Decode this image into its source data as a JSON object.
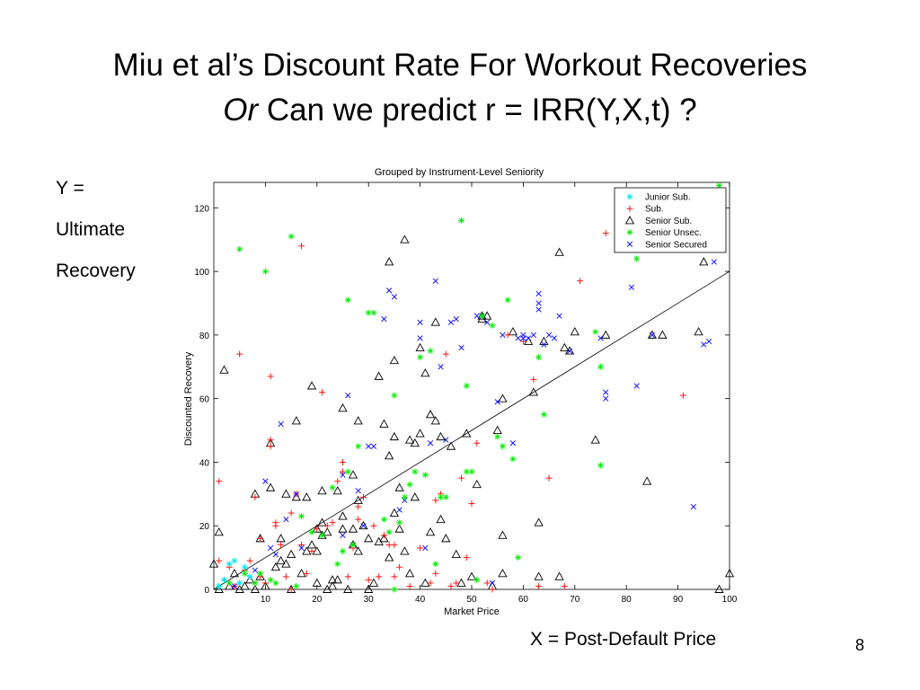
{
  "slide": {
    "title_line1": "Miu et al’s Discount Rate For Workout Recoveries",
    "title_line2_italic": "Or",
    "title_line2_rest": " Can we predict r = IRR(Y,X,t) ?",
    "y_label_lines": [
      "Y =",
      "Ultimate",
      "Recovery"
    ],
    "x_caption": "X = Post-Default Price",
    "page_number": "8"
  },
  "colors": {
    "junior_sub": "#00e5ee",
    "sub": "#ff0000",
    "senior_sub": "#000000",
    "senior_unsec": "#00ee00",
    "senior_secured": "#0000ff"
  },
  "chart_data": {
    "type": "scatter",
    "title": "Grouped by Instrument-Level Seniority",
    "xlabel": "Market Price",
    "ylabel": "Discounted Recovery",
    "xlim": [
      0,
      100
    ],
    "ylim": [
      0,
      128
    ],
    "xticks": [
      "10",
      "20",
      "30",
      "40",
      "50",
      "60",
      "70",
      "80",
      "90",
      "100"
    ],
    "yticks": [
      "0",
      "20",
      "40",
      "60",
      "80",
      "100",
      "120"
    ],
    "xtick_values": [
      10,
      20,
      30,
      40,
      50,
      60,
      70,
      80,
      90,
      100
    ],
    "ytick_values": [
      0,
      20,
      40,
      60,
      80,
      100,
      120
    ],
    "grid": false,
    "legend_position": "top-right",
    "reference_line": {
      "from": [
        0,
        0
      ],
      "to": [
        100,
        100
      ]
    },
    "series": [
      {
        "name": "Junior Sub.",
        "marker": "asterisk",
        "color": "#00e5ee",
        "points": [
          [
            1,
            1
          ],
          [
            2,
            3
          ],
          [
            3,
            8
          ],
          [
            4,
            9
          ],
          [
            5,
            2
          ],
          [
            6,
            7
          ],
          [
            7,
            4
          ]
        ]
      },
      {
        "name": "Sub.",
        "marker": "plus",
        "color": "#ff0000",
        "points": [
          [
            1,
            34
          ],
          [
            1,
            9
          ],
          [
            2,
            3
          ],
          [
            3,
            7
          ],
          [
            4,
            1
          ],
          [
            5,
            74
          ],
          [
            6,
            6
          ],
          [
            7,
            9
          ],
          [
            8,
            29
          ],
          [
            9,
            4
          ],
          [
            9,
            16
          ],
          [
            10,
            2
          ],
          [
            11,
            45
          ],
          [
            11,
            47
          ],
          [
            11,
            67
          ],
          [
            12,
            20
          ],
          [
            12,
            21
          ],
          [
            13,
            14
          ],
          [
            14,
            4
          ],
          [
            15,
            0
          ],
          [
            15,
            24
          ],
          [
            16,
            30
          ],
          [
            17,
            108
          ],
          [
            17,
            14
          ],
          [
            18,
            5
          ],
          [
            19,
            12
          ],
          [
            20,
            19
          ],
          [
            21,
            62
          ],
          [
            22,
            20
          ],
          [
            23,
            21
          ],
          [
            24,
            34
          ],
          [
            25,
            37
          ],
          [
            25,
            40
          ],
          [
            26,
            4
          ],
          [
            27,
            13
          ],
          [
            28,
            22
          ],
          [
            28,
            26
          ],
          [
            29,
            29
          ],
          [
            30,
            3
          ],
          [
            31,
            20
          ],
          [
            32,
            4
          ],
          [
            33,
            17
          ],
          [
            34,
            14
          ],
          [
            35,
            14
          ],
          [
            35,
            4
          ],
          [
            36,
            7
          ],
          [
            38,
            1
          ],
          [
            40,
            13
          ],
          [
            42,
            2
          ],
          [
            43,
            28
          ],
          [
            43,
            5
          ],
          [
            44,
            30
          ],
          [
            45,
            74
          ],
          [
            46,
            1
          ],
          [
            47,
            2
          ],
          [
            48,
            35
          ],
          [
            49,
            10
          ],
          [
            50,
            27
          ],
          [
            51,
            46
          ],
          [
            53,
            2
          ],
          [
            54,
            0
          ],
          [
            57,
            80
          ],
          [
            60,
            78
          ],
          [
            62,
            66
          ],
          [
            63,
            1
          ],
          [
            65,
            35
          ],
          [
            68,
            1
          ],
          [
            71,
            97
          ],
          [
            76,
            112
          ],
          [
            91,
            61
          ]
        ]
      },
      {
        "name": "Senior Sub.",
        "marker": "triangle",
        "color": "#000000",
        "points": [
          [
            0,
            8
          ],
          [
            1,
            18
          ],
          [
            1,
            0
          ],
          [
            2,
            69
          ],
          [
            3,
            1
          ],
          [
            4,
            5
          ],
          [
            5,
            0
          ],
          [
            6,
            1
          ],
          [
            7,
            3
          ],
          [
            8,
            0
          ],
          [
            8,
            30
          ],
          [
            9,
            4
          ],
          [
            9,
            16
          ],
          [
            10,
            1
          ],
          [
            11,
            46
          ],
          [
            11,
            32
          ],
          [
            12,
            7
          ],
          [
            13,
            16
          ],
          [
            13,
            9
          ],
          [
            14,
            8
          ],
          [
            14,
            30
          ],
          [
            15,
            0
          ],
          [
            15,
            11
          ],
          [
            16,
            29
          ],
          [
            16,
            53
          ],
          [
            17,
            5
          ],
          [
            18,
            29
          ],
          [
            18,
            12
          ],
          [
            19,
            64
          ],
          [
            19,
            14
          ],
          [
            20,
            12
          ],
          [
            20,
            19
          ],
          [
            20,
            2
          ],
          [
            21,
            31
          ],
          [
            21,
            17
          ],
          [
            21,
            21
          ],
          [
            22,
            18
          ],
          [
            22,
            0
          ],
          [
            23,
            3
          ],
          [
            23,
            1
          ],
          [
            24,
            31
          ],
          [
            24,
            3
          ],
          [
            25,
            57
          ],
          [
            25,
            19
          ],
          [
            25,
            23
          ],
          [
            26,
            0
          ],
          [
            27,
            19
          ],
          [
            27,
            14
          ],
          [
            27,
            36
          ],
          [
            28,
            53
          ],
          [
            28,
            28
          ],
          [
            28,
            12
          ],
          [
            29,
            20
          ],
          [
            30,
            16
          ],
          [
            30,
            0
          ],
          [
            31,
            2
          ],
          [
            32,
            67
          ],
          [
            32,
            15
          ],
          [
            33,
            52
          ],
          [
            33,
            16
          ],
          [
            34,
            103
          ],
          [
            34,
            10
          ],
          [
            34,
            42
          ],
          [
            35,
            48
          ],
          [
            35,
            24
          ],
          [
            35,
            72
          ],
          [
            36,
            32
          ],
          [
            36,
            19
          ],
          [
            37,
            110
          ],
          [
            37,
            12
          ],
          [
            38,
            5
          ],
          [
            38,
            47
          ],
          [
            39,
            29
          ],
          [
            39,
            46
          ],
          [
            40,
            76
          ],
          [
            40,
            49
          ],
          [
            41,
            68
          ],
          [
            41,
            2
          ],
          [
            42,
            55
          ],
          [
            42,
            18
          ],
          [
            43,
            84
          ],
          [
            43,
            53
          ],
          [
            44,
            22
          ],
          [
            44,
            48
          ],
          [
            45,
            16
          ],
          [
            46,
            45
          ],
          [
            47,
            11
          ],
          [
            48,
            2
          ],
          [
            49,
            49
          ],
          [
            50,
            4
          ],
          [
            51,
            33
          ],
          [
            52,
            85
          ],
          [
            52,
            86
          ],
          [
            53,
            86
          ],
          [
            54,
            1
          ],
          [
            55,
            50
          ],
          [
            56,
            60
          ],
          [
            56,
            5
          ],
          [
            56,
            17
          ],
          [
            58,
            81
          ],
          [
            61,
            78
          ],
          [
            62,
            62
          ],
          [
            63,
            4
          ],
          [
            63,
            21
          ],
          [
            64,
            78
          ],
          [
            67,
            4
          ],
          [
            67,
            106
          ],
          [
            68,
            76
          ],
          [
            69,
            75
          ],
          [
            70,
            81
          ],
          [
            74,
            47
          ],
          [
            76,
            80
          ],
          [
            84,
            34
          ],
          [
            85,
            80
          ],
          [
            87,
            80
          ],
          [
            94,
            81
          ],
          [
            95,
            103
          ],
          [
            98,
            0
          ],
          [
            100,
            5
          ]
        ]
      },
      {
        "name": "Senior Unsec.",
        "marker": "asterisk",
        "color": "#00ee00",
        "points": [
          [
            1,
            1
          ],
          [
            3,
            2
          ],
          [
            5,
            107
          ],
          [
            6,
            5
          ],
          [
            8,
            2
          ],
          [
            9,
            5
          ],
          [
            10,
            100
          ],
          [
            11,
            3
          ],
          [
            12,
            2
          ],
          [
            15,
            111
          ],
          [
            16,
            1
          ],
          [
            17,
            23
          ],
          [
            19,
            18
          ],
          [
            21,
            17
          ],
          [
            23,
            32
          ],
          [
            24,
            8
          ],
          [
            25,
            12
          ],
          [
            26,
            37
          ],
          [
            26,
            91
          ],
          [
            27,
            14
          ],
          [
            28,
            45
          ],
          [
            30,
            87
          ],
          [
            31,
            87
          ],
          [
            33,
            22
          ],
          [
            34,
            18
          ],
          [
            35,
            0
          ],
          [
            35,
            61
          ],
          [
            36,
            21
          ],
          [
            37,
            29
          ],
          [
            38,
            33
          ],
          [
            39,
            37
          ],
          [
            40,
            73
          ],
          [
            41,
            36
          ],
          [
            42,
            75
          ],
          [
            43,
            8
          ],
          [
            44,
            29
          ],
          [
            45,
            29
          ],
          [
            48,
            116
          ],
          [
            49,
            37
          ],
          [
            49,
            64
          ],
          [
            50,
            37
          ],
          [
            51,
            3
          ],
          [
            52,
            86
          ],
          [
            54,
            83
          ],
          [
            55,
            48
          ],
          [
            56,
            45
          ],
          [
            57,
            91
          ],
          [
            58,
            41
          ],
          [
            59,
            10
          ],
          [
            63,
            73
          ],
          [
            64,
            55
          ],
          [
            74,
            81
          ],
          [
            75,
            39
          ],
          [
            75,
            70
          ],
          [
            82,
            104
          ],
          [
            98,
            127
          ]
        ]
      },
      {
        "name": "Senior Secured",
        "marker": "x",
        "color": "#0000ff",
        "points": [
          [
            4,
            1
          ],
          [
            8,
            6
          ],
          [
            10,
            34
          ],
          [
            11,
            13
          ],
          [
            12,
            11
          ],
          [
            13,
            52
          ],
          [
            14,
            22
          ],
          [
            16,
            30
          ],
          [
            17,
            13
          ],
          [
            25,
            17
          ],
          [
            25,
            36
          ],
          [
            26,
            61
          ],
          [
            27,
            14
          ],
          [
            28,
            31
          ],
          [
            29,
            20
          ],
          [
            30,
            45
          ],
          [
            31,
            45
          ],
          [
            33,
            85
          ],
          [
            34,
            94
          ],
          [
            35,
            92
          ],
          [
            36,
            25
          ],
          [
            37,
            28
          ],
          [
            40,
            84
          ],
          [
            40,
            79
          ],
          [
            41,
            13
          ],
          [
            42,
            46
          ],
          [
            43,
            97
          ],
          [
            44,
            70
          ],
          [
            45,
            47
          ],
          [
            46,
            84
          ],
          [
            47,
            85
          ],
          [
            48,
            76
          ],
          [
            51,
            86
          ],
          [
            52,
            86
          ],
          [
            53,
            84
          ],
          [
            54,
            2
          ],
          [
            55,
            59
          ],
          [
            56,
            80
          ],
          [
            58,
            46
          ],
          [
            59,
            79
          ],
          [
            60,
            79
          ],
          [
            60,
            80
          ],
          [
            61,
            79
          ],
          [
            62,
            80
          ],
          [
            63,
            88
          ],
          [
            63,
            90
          ],
          [
            63,
            93
          ],
          [
            64,
            77
          ],
          [
            65,
            80
          ],
          [
            66,
            79
          ],
          [
            67,
            86
          ],
          [
            69,
            75
          ],
          [
            75,
            79
          ],
          [
            76,
            60
          ],
          [
            76,
            62
          ],
          [
            81,
            95
          ],
          [
            82,
            64
          ],
          [
            85,
            80
          ],
          [
            93,
            26
          ],
          [
            95,
            77
          ],
          [
            96,
            78
          ],
          [
            97,
            103
          ]
        ]
      }
    ]
  }
}
